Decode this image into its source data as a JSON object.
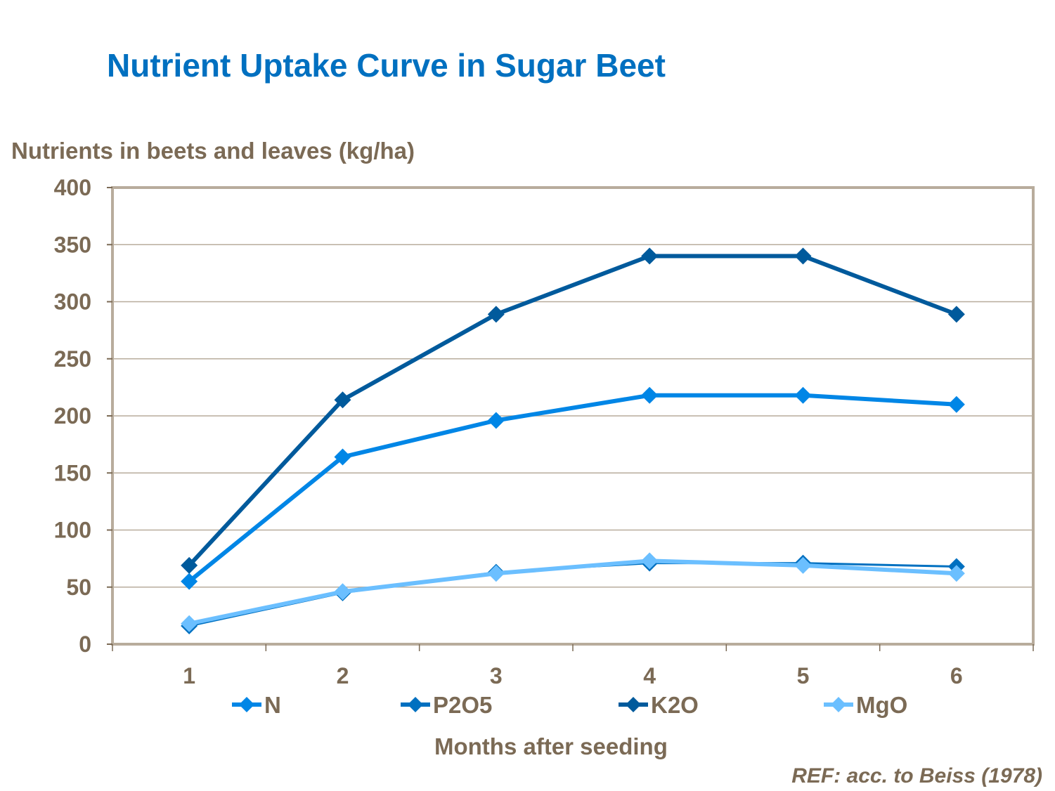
{
  "chart_data": {
    "type": "line",
    "title": "Nutrient Uptake Curve in Sugar Beet",
    "ylabel": "Nutrients in beets and leaves (kg/ha)",
    "xlabel": "Months after seeding",
    "categories": [
      "1",
      "2",
      "3",
      "4",
      "5",
      "6"
    ],
    "ylim": [
      0,
      400
    ],
    "yticks": [
      "0",
      "50",
      "100",
      "150",
      "200",
      "250",
      "300",
      "350",
      "400"
    ],
    "grid": true,
    "legend": "bottom",
    "series": [
      {
        "name": "N",
        "color": "#0086E6",
        "values": [
          55,
          164,
          196,
          218,
          218,
          210
        ]
      },
      {
        "name": "P2O5",
        "color": "#0070C0",
        "values": [
          16,
          45,
          63,
          71,
          71,
          68
        ]
      },
      {
        "name": "K2O",
        "color": "#005A9C",
        "values": [
          69,
          214,
          289,
          340,
          340,
          289
        ]
      },
      {
        "name": "MgO",
        "color": "#6BBFFF",
        "values": [
          18,
          46,
          62,
          73,
          69,
          62
        ]
      }
    ],
    "note": "REF: acc. to Beiss (1978)"
  }
}
